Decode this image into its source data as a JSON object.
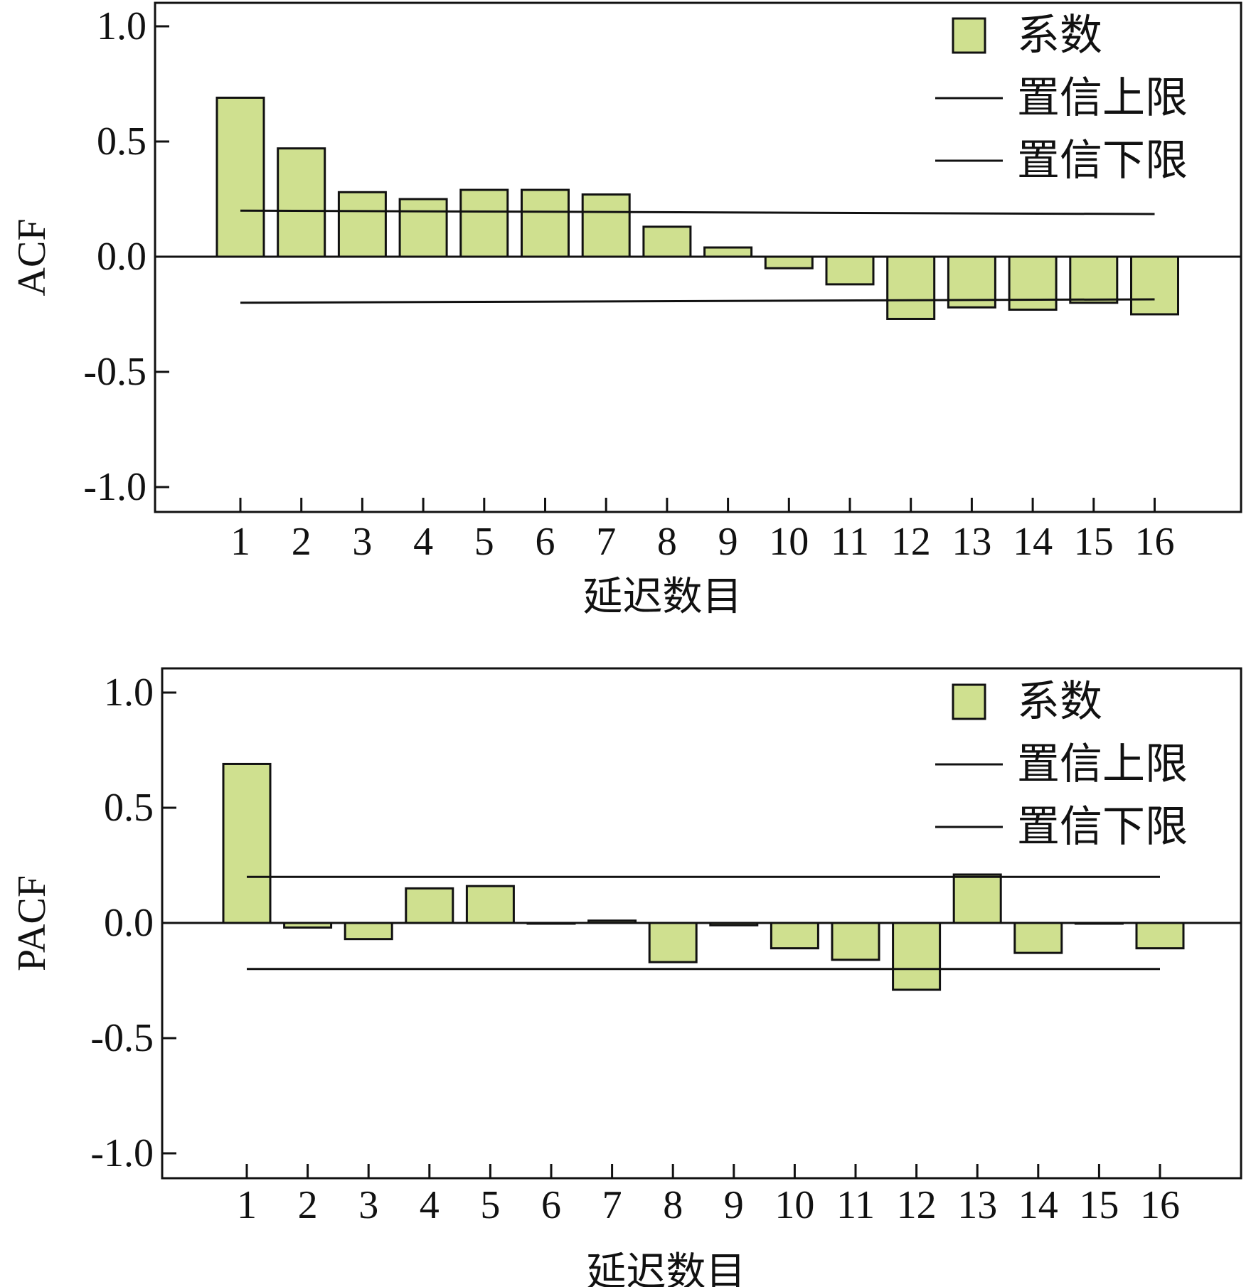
{
  "chart_data": [
    {
      "type": "bar",
      "ylabel": "ACF",
      "xlabel": "延迟数目",
      "ylim": [
        -1.1,
        1.1
      ],
      "yticks": [
        1.0,
        0.5,
        0.0,
        -0.5,
        -1.0
      ],
      "ytick_labels": [
        "1.0",
        "0.5",
        "0.0",
        "-0.5",
        "-1.0"
      ],
      "categories": [
        "1",
        "2",
        "3",
        "4",
        "5",
        "6",
        "7",
        "8",
        "9",
        "10",
        "11",
        "12",
        "13",
        "14",
        "15",
        "16"
      ],
      "legend": {
        "position": "top-right",
        "entries": [
          "系数",
          "置信上限",
          "置信下限"
        ]
      },
      "series": [
        {
          "name": "系数",
          "kind": "bar",
          "values": [
            0.69,
            0.47,
            0.28,
            0.25,
            0.29,
            0.29,
            0.27,
            0.13,
            0.04,
            -0.05,
            -0.12,
            -0.27,
            -0.22,
            -0.23,
            -0.2,
            -0.25
          ]
        },
        {
          "name": "置信上限",
          "kind": "line",
          "x": [
            1,
            16
          ],
          "values": [
            0.2,
            0.185
          ]
        },
        {
          "name": "置信下限",
          "kind": "line",
          "x": [
            1,
            16
          ],
          "values": [
            -0.2,
            -0.185
          ]
        }
      ]
    },
    {
      "type": "bar",
      "ylabel": "PACF",
      "xlabel": "延迟数目",
      "ylim": [
        -1.1,
        1.1
      ],
      "yticks": [
        1.0,
        0.5,
        0.0,
        -0.5,
        -1.0
      ],
      "ytick_labels": [
        "1.0",
        "0.5",
        "0.0",
        "-0.5",
        "-1.0"
      ],
      "categories": [
        "1",
        "2",
        "3",
        "4",
        "5",
        "6",
        "7",
        "8",
        "9",
        "10",
        "11",
        "12",
        "13",
        "14",
        "15",
        "16"
      ],
      "legend": {
        "position": "top-right",
        "entries": [
          "系数",
          "置信上限",
          "置信下限"
        ]
      },
      "series": [
        {
          "name": "系数",
          "kind": "bar",
          "values": [
            0.69,
            -0.02,
            -0.07,
            0.15,
            0.16,
            0.0,
            0.01,
            -0.17,
            -0.01,
            -0.11,
            -0.16,
            -0.29,
            0.21,
            -0.13,
            0.0,
            -0.11
          ]
        },
        {
          "name": "置信上限",
          "kind": "line",
          "x": [
            1,
            16
          ],
          "values": [
            0.2,
            0.2
          ]
        },
        {
          "name": "置信下限",
          "kind": "line",
          "x": [
            1,
            16
          ],
          "values": [
            -0.2,
            -0.2
          ]
        }
      ]
    }
  ],
  "colors": {
    "bar_fill": "#cfe08f",
    "ink": "#111111",
    "background": "#ffffff"
  }
}
